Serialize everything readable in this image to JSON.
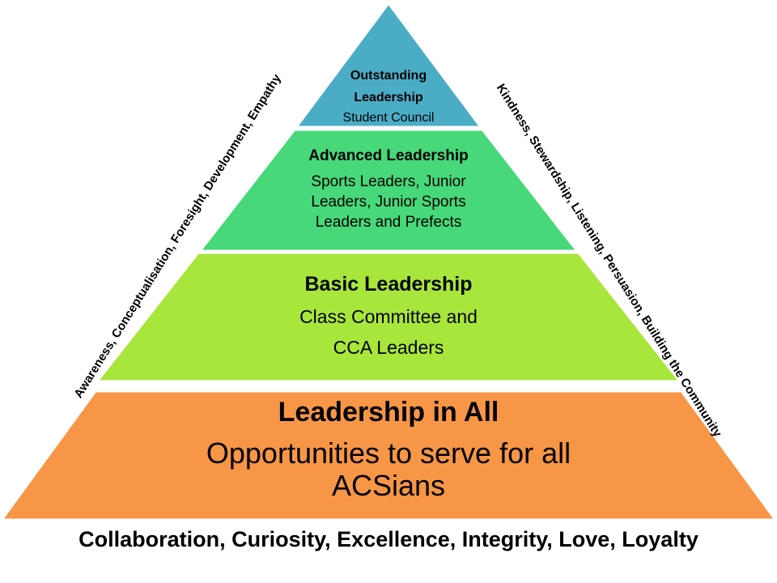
{
  "tiers": [
    {
      "level": 1,
      "title": "Outstanding",
      "title2": "Leadership",
      "subtitle": "Student Council",
      "color": "#4bacc6"
    },
    {
      "level": 2,
      "title": "Advanced Leadership",
      "subtitle_lines": [
        "Sports Leaders, Junior",
        "Leaders, Junior Sports",
        "Leaders and Prefects"
      ],
      "color": "#47d87a"
    },
    {
      "level": 3,
      "title": "Basic Leadership",
      "subtitle_lines": [
        "Class Committee and",
        "CCA Leaders"
      ],
      "color": "#a8e63c"
    },
    {
      "level": 4,
      "title": "Leadership in All",
      "subtitle_lines": [
        "Opportunities to serve for all",
        "ACSians"
      ],
      "color": "#f79646"
    }
  ],
  "left_side_text": "Awareness, Conceptualisation, Foresight, Development, Empathy",
  "right_side_text": "Kindness, Stewardship, Listening, Persuasion, Building the Community",
  "core_values": "Collaboration, Curiosity, Excellence, Integrity, Love, Loyalty",
  "outline_color": "#ffffff"
}
